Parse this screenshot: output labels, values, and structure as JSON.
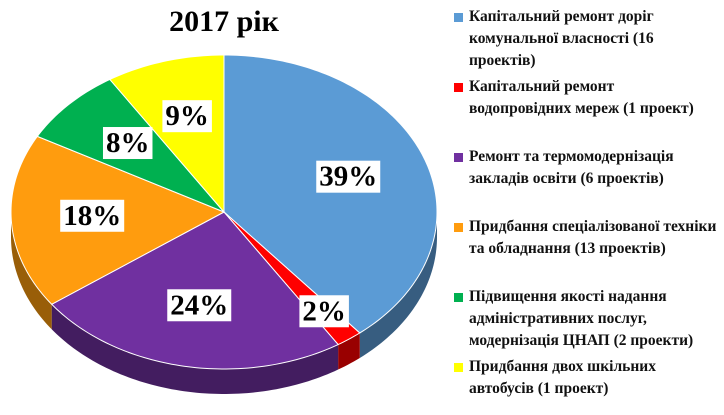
{
  "chart_data": {
    "type": "pie",
    "title": "2017 рік",
    "categories": [
      "Капітальний ремонт доріг комунальної власності (16 проектів)",
      "Капітальний ремонт водопровідних мереж (1 проект)",
      "Ремонт та термомодернізація закладів освіти (6 проектів)",
      "Придбання спеціалізованої техніки та обладнання (13 проектів)",
      "Підвищення якості надання адміністративних послуг, модернізація ЦНАП (2 проекти)",
      "Придбання двох шкільних автобусів (1 проект)"
    ],
    "values": [
      39,
      2,
      24,
      18,
      8,
      9
    ],
    "value_labels": [
      "39%",
      "2%",
      "24%",
      "18%",
      "8%",
      "9%"
    ],
    "colors": [
      "#5b9bd5",
      "#ff0000",
      "#7030a0",
      "#ff9c0e",
      "#00b050",
      "#ffff00"
    ],
    "legend": "right"
  }
}
